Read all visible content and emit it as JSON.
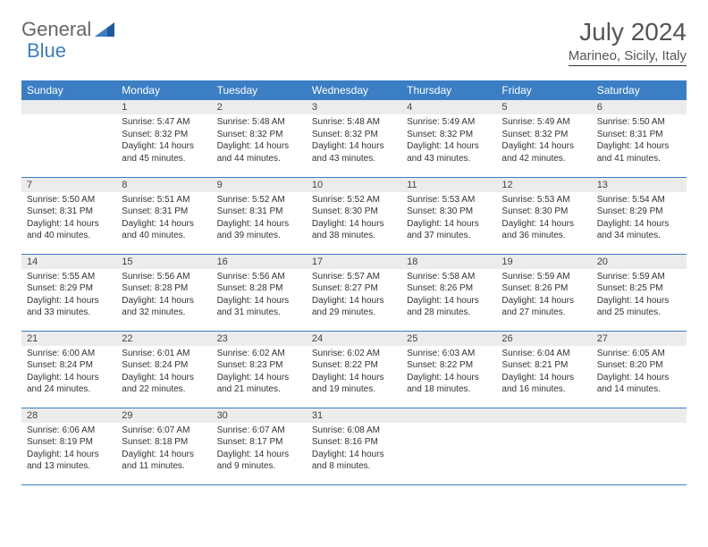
{
  "logo": {
    "word1": "General",
    "word2": "Blue"
  },
  "title": "July 2024",
  "location": "Marineo, Sicily, Italy",
  "colors": {
    "header_bg": "#3b7ec4",
    "daynum_bg": "#ececec",
    "border": "#3b7ec4"
  },
  "weekdays": [
    "Sunday",
    "Monday",
    "Tuesday",
    "Wednesday",
    "Thursday",
    "Friday",
    "Saturday"
  ],
  "weeks": [
    [
      {
        "n": "",
        "sr": "",
        "ss": "",
        "dl": ""
      },
      {
        "n": "1",
        "sr": "5:47 AM",
        "ss": "8:32 PM",
        "dl": "14 hours and 45 minutes."
      },
      {
        "n": "2",
        "sr": "5:48 AM",
        "ss": "8:32 PM",
        "dl": "14 hours and 44 minutes."
      },
      {
        "n": "3",
        "sr": "5:48 AM",
        "ss": "8:32 PM",
        "dl": "14 hours and 43 minutes."
      },
      {
        "n": "4",
        "sr": "5:49 AM",
        "ss": "8:32 PM",
        "dl": "14 hours and 43 minutes."
      },
      {
        "n": "5",
        "sr": "5:49 AM",
        "ss": "8:32 PM",
        "dl": "14 hours and 42 minutes."
      },
      {
        "n": "6",
        "sr": "5:50 AM",
        "ss": "8:31 PM",
        "dl": "14 hours and 41 minutes."
      }
    ],
    [
      {
        "n": "7",
        "sr": "5:50 AM",
        "ss": "8:31 PM",
        "dl": "14 hours and 40 minutes."
      },
      {
        "n": "8",
        "sr": "5:51 AM",
        "ss": "8:31 PM",
        "dl": "14 hours and 40 minutes."
      },
      {
        "n": "9",
        "sr": "5:52 AM",
        "ss": "8:31 PM",
        "dl": "14 hours and 39 minutes."
      },
      {
        "n": "10",
        "sr": "5:52 AM",
        "ss": "8:30 PM",
        "dl": "14 hours and 38 minutes."
      },
      {
        "n": "11",
        "sr": "5:53 AM",
        "ss": "8:30 PM",
        "dl": "14 hours and 37 minutes."
      },
      {
        "n": "12",
        "sr": "5:53 AM",
        "ss": "8:30 PM",
        "dl": "14 hours and 36 minutes."
      },
      {
        "n": "13",
        "sr": "5:54 AM",
        "ss": "8:29 PM",
        "dl": "14 hours and 34 minutes."
      }
    ],
    [
      {
        "n": "14",
        "sr": "5:55 AM",
        "ss": "8:29 PM",
        "dl": "14 hours and 33 minutes."
      },
      {
        "n": "15",
        "sr": "5:56 AM",
        "ss": "8:28 PM",
        "dl": "14 hours and 32 minutes."
      },
      {
        "n": "16",
        "sr": "5:56 AM",
        "ss": "8:28 PM",
        "dl": "14 hours and 31 minutes."
      },
      {
        "n": "17",
        "sr": "5:57 AM",
        "ss": "8:27 PM",
        "dl": "14 hours and 29 minutes."
      },
      {
        "n": "18",
        "sr": "5:58 AM",
        "ss": "8:26 PM",
        "dl": "14 hours and 28 minutes."
      },
      {
        "n": "19",
        "sr": "5:59 AM",
        "ss": "8:26 PM",
        "dl": "14 hours and 27 minutes."
      },
      {
        "n": "20",
        "sr": "5:59 AM",
        "ss": "8:25 PM",
        "dl": "14 hours and 25 minutes."
      }
    ],
    [
      {
        "n": "21",
        "sr": "6:00 AM",
        "ss": "8:24 PM",
        "dl": "14 hours and 24 minutes."
      },
      {
        "n": "22",
        "sr": "6:01 AM",
        "ss": "8:24 PM",
        "dl": "14 hours and 22 minutes."
      },
      {
        "n": "23",
        "sr": "6:02 AM",
        "ss": "8:23 PM",
        "dl": "14 hours and 21 minutes."
      },
      {
        "n": "24",
        "sr": "6:02 AM",
        "ss": "8:22 PM",
        "dl": "14 hours and 19 minutes."
      },
      {
        "n": "25",
        "sr": "6:03 AM",
        "ss": "8:22 PM",
        "dl": "14 hours and 18 minutes."
      },
      {
        "n": "26",
        "sr": "6:04 AM",
        "ss": "8:21 PM",
        "dl": "14 hours and 16 minutes."
      },
      {
        "n": "27",
        "sr": "6:05 AM",
        "ss": "8:20 PM",
        "dl": "14 hours and 14 minutes."
      }
    ],
    [
      {
        "n": "28",
        "sr": "6:06 AM",
        "ss": "8:19 PM",
        "dl": "14 hours and 13 minutes."
      },
      {
        "n": "29",
        "sr": "6:07 AM",
        "ss": "8:18 PM",
        "dl": "14 hours and 11 minutes."
      },
      {
        "n": "30",
        "sr": "6:07 AM",
        "ss": "8:17 PM",
        "dl": "14 hours and 9 minutes."
      },
      {
        "n": "31",
        "sr": "6:08 AM",
        "ss": "8:16 PM",
        "dl": "14 hours and 8 minutes."
      },
      {
        "n": "",
        "sr": "",
        "ss": "",
        "dl": ""
      },
      {
        "n": "",
        "sr": "",
        "ss": "",
        "dl": ""
      },
      {
        "n": "",
        "sr": "",
        "ss": "",
        "dl": ""
      }
    ]
  ],
  "labels": {
    "sunrise": "Sunrise: ",
    "sunset": "Sunset: ",
    "daylight": "Daylight: "
  }
}
